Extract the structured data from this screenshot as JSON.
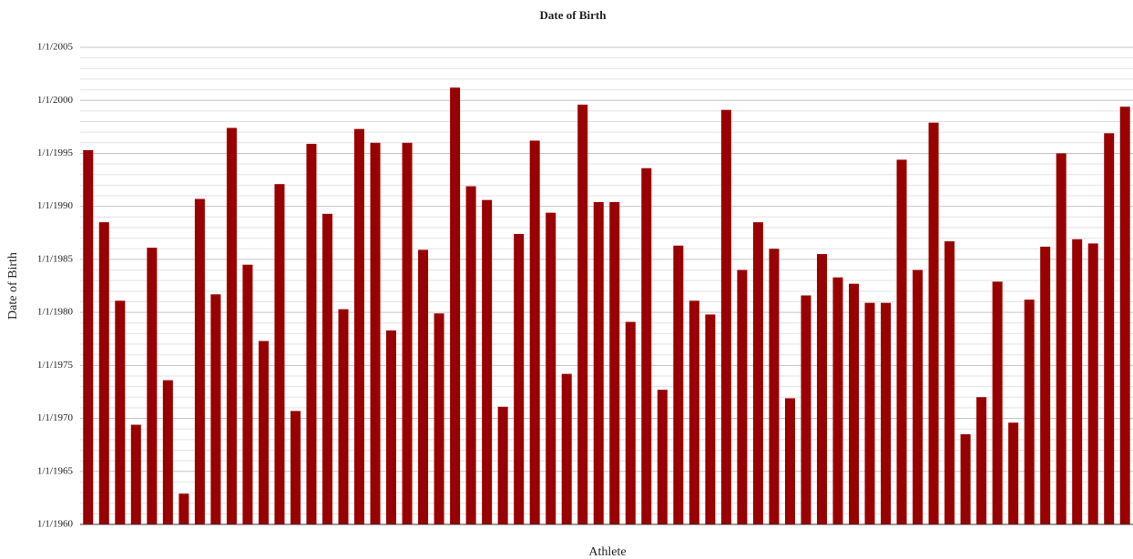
{
  "chart_data": {
    "type": "bar",
    "title": "Date of Birth",
    "x_label": "Athlete",
    "y_label": "Date of Birth",
    "categories": [
      null,
      null,
      null,
      null,
      null,
      null,
      null,
      null,
      null,
      null,
      null,
      null,
      null,
      null,
      null,
      null,
      null,
      null,
      null,
      null,
      null,
      null,
      null,
      null,
      null,
      null,
      null,
      null,
      null,
      null,
      null,
      null,
      null,
      null,
      null,
      null,
      null,
      null,
      null,
      null,
      null,
      null,
      null,
      null,
      null,
      null,
      null,
      null,
      null,
      null,
      null,
      null,
      null,
      null,
      null,
      null,
      null,
      null,
      null,
      null,
      null,
      null,
      null,
      null,
      null,
      null
    ],
    "values": [
      1995.3,
      1988.5,
      1981.1,
      1969.4,
      1986.1,
      1973.6,
      1962.9,
      1990.7,
      1981.7,
      1997.4,
      1984.5,
      1977.3,
      1992.1,
      1970.7,
      1995.9,
      1989.3,
      1980.3,
      1997.3,
      1996.0,
      1978.3,
      1996.0,
      1985.9,
      1979.9,
      2001.2,
      1991.9,
      1990.6,
      1971.1,
      1987.4,
      1996.2,
      1989.4,
      1974.2,
      1999.6,
      1990.4,
      1990.4,
      1979.1,
      1993.6,
      1972.7,
      1986.3,
      1981.1,
      1979.8,
      1999.1,
      1984.0,
      1988.5,
      1986.0,
      1971.9,
      1981.6,
      1985.5,
      1983.3,
      1982.7,
      1980.9,
      1980.9,
      1994.4,
      1984.0,
      1997.9,
      1986.7,
      1968.5,
      1972.0,
      1982.9,
      1969.6,
      1981.2,
      1986.2,
      1995.0,
      1986.9,
      1986.5,
      1996.9,
      1999.4
    ],
    "color": "#990000",
    "ylim": [
      1960,
      2005
    ],
    "yticks": [
      {
        "value": 1960,
        "label": "1/1/1960"
      },
      {
        "value": 1965,
        "label": "1/1/1965"
      },
      {
        "value": 1970,
        "label": "1/1/1970"
      },
      {
        "value": 1975,
        "label": "1/1/1975"
      },
      {
        "value": 1980,
        "label": "1/1/1980"
      },
      {
        "value": 1985,
        "label": "1/1/1985"
      },
      {
        "value": 1990,
        "label": "1/1/1990"
      },
      {
        "value": 1995,
        "label": "1/1/1995"
      },
      {
        "value": 2000,
        "label": "1/1/2000"
      },
      {
        "value": 2005,
        "label": "1/1/2005"
      }
    ],
    "minor_yticks": [
      1961,
      1962,
      1963,
      1964,
      1966,
      1967,
      1968,
      1969,
      1971,
      1972,
      1973,
      1974,
      1976,
      1977,
      1978,
      1979,
      1981,
      1982,
      1983,
      1984,
      1986,
      1987,
      1988,
      1989,
      1991,
      1992,
      1993,
      1994,
      1996,
      1997,
      1998,
      1999,
      2001,
      2002,
      2003,
      2004
    ],
    "grid": true
  }
}
